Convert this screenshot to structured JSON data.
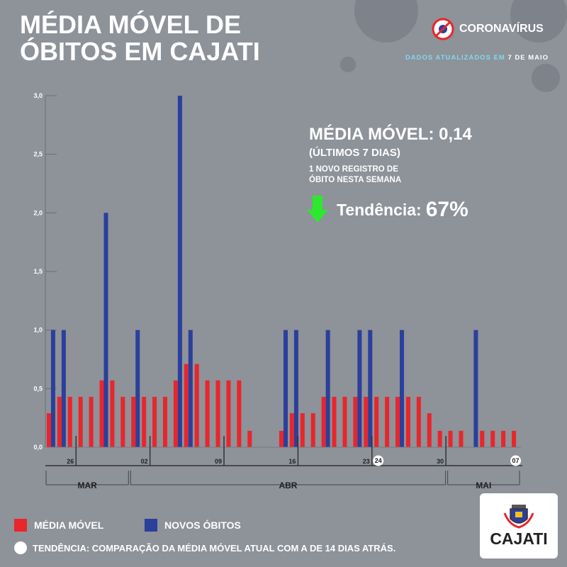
{
  "title": {
    "line1": "MÉDIA MÓVEL DE",
    "line2": "ÓBITOS EM CAJATI"
  },
  "brand": {
    "label": "CORONAVÍRUS",
    "icon": "no-virus-icon"
  },
  "updated": {
    "prefix": "DADOS ATUALIZADOS EM",
    "date": "7 DE MAIO"
  },
  "stats": {
    "media_movel": "MÉDIA MÓVEL: 0,14",
    "period": "(ÚLTIMOS 7 DIAS)",
    "registro_line1": "1 NOVO REGISTRO DE",
    "registro_line2": "ÓBITO NESTA SEMANA",
    "tendencia_label": "Tendência:",
    "tendencia_value": "67%",
    "trend_icon": "arrow-down-icon"
  },
  "legend": {
    "media": "MÉDIA MÓVEL",
    "novos": "NOVOS ÓBITOS"
  },
  "note": "TENDÊNCIA: COMPARAÇÃO DA MÉDIA MÓVEL ATUAL COM A DE 14 DIAS ATRÁS.",
  "logo": {
    "text": "CAJATI",
    "icon": "city-coat-of-arms-icon"
  },
  "colors": {
    "media": "#e8262b",
    "novos": "#2b3f9b",
    "trend": "#2ee82e",
    "background": "#8e9299"
  },
  "chart_data": {
    "type": "bar",
    "start_date": "2020-03-24",
    "ylim": [
      0,
      3
    ],
    "yticks": [
      "0,0",
      "0,5",
      "1,0",
      "1,5",
      "2,0",
      "2,5",
      "3,0"
    ],
    "xticks": [
      {
        "label": "26",
        "day": 2
      },
      {
        "label": "02",
        "day": 9
      },
      {
        "label": "09",
        "day": 16
      },
      {
        "label": "16",
        "day": 23
      },
      {
        "label": "23",
        "day": 30
      },
      {
        "label": "24",
        "day": 31,
        "highlight": true
      },
      {
        "label": "30",
        "day": 37
      },
      {
        "label": "07",
        "day": 44,
        "highlight": true
      }
    ],
    "months": [
      {
        "label": "MAR",
        "from": 0,
        "to": 7
      },
      {
        "label": "ABR",
        "from": 8,
        "to": 37
      },
      {
        "label": "MAI",
        "from": 38,
        "to": 44
      }
    ],
    "series": [
      {
        "name": "MÉDIA MÓVEL",
        "values": [
          0.29,
          0.43,
          0.43,
          0.43,
          0.43,
          0.57,
          0.57,
          0.43,
          0.43,
          0.43,
          0.43,
          0.43,
          0.57,
          0.71,
          0.71,
          0.57,
          0.57,
          0.57,
          0.57,
          0.14,
          0,
          0,
          0.14,
          0.29,
          0.29,
          0.29,
          0.43,
          0.43,
          0.43,
          0.43,
          0.43,
          0.43,
          0.43,
          0.43,
          0.43,
          0.43,
          0.29,
          0.14,
          0.14,
          0.14,
          0,
          0.14,
          0.14,
          0.14,
          0.14
        ]
      },
      {
        "name": "NOVOS ÓBITOS",
        "values": [
          1,
          1,
          0,
          0,
          0,
          2,
          0,
          0,
          1,
          0,
          0,
          0,
          3,
          1,
          0,
          0,
          0,
          0,
          0,
          0,
          0,
          0,
          1,
          1,
          0,
          0,
          1,
          0,
          0,
          1,
          1,
          0,
          0,
          1,
          0,
          0,
          0,
          0,
          0,
          0,
          1,
          0,
          0,
          0,
          0
        ]
      }
    ]
  }
}
